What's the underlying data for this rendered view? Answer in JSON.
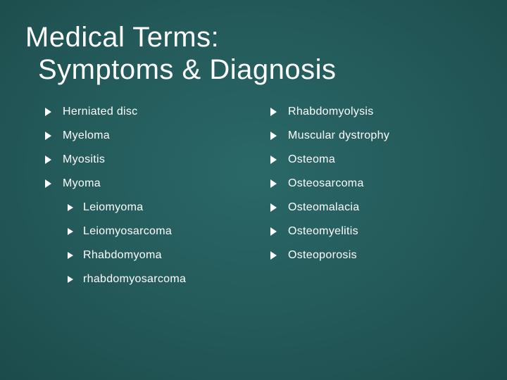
{
  "background": {
    "gradient_center": "#2a6868",
    "gradient_mid": "#235858",
    "gradient_outer": "#163c3c"
  },
  "text_color": "#ffffff",
  "marker_color": "#ffffff",
  "font_family": "Century Gothic",
  "title": {
    "line1": "Medical Terms:",
    "line2": "Symptoms & Diagnosis",
    "fontsize": 40,
    "fontweight": 300
  },
  "body_fontsize": 16,
  "left_column": {
    "items": [
      {
        "label": "Herniated disc"
      },
      {
        "label": "Myeloma"
      },
      {
        "label": "Myositis"
      },
      {
        "label": "Myoma",
        "children": [
          {
            "label": "Leiomyoma"
          },
          {
            "label": "Leiomyosarcoma"
          },
          {
            "label": "Rhabdomyoma"
          },
          {
            "label": "rhabdomyosarcoma"
          }
        ]
      }
    ]
  },
  "right_column": {
    "items": [
      {
        "label": "Rhabdomyolysis"
      },
      {
        "label": "Muscular dystrophy"
      },
      {
        "label": "Osteoma"
      },
      {
        "label": "Osteosarcoma"
      },
      {
        "label": "Osteomalacia"
      },
      {
        "label": "Osteomyelitis"
      },
      {
        "label": "Osteoporosis"
      }
    ]
  }
}
